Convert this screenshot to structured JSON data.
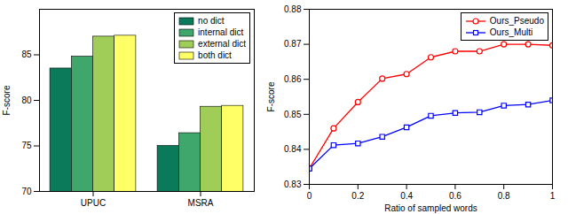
{
  "chart_data": [
    {
      "type": "bar",
      "categories": [
        "UPUC",
        "MSRA"
      ],
      "series": [
        {
          "name": "no dict",
          "color": "#0a7a5a",
          "values": [
            83.5,
            75.0
          ]
        },
        {
          "name": "internal dict",
          "color": "#3fa66c",
          "values": [
            84.8,
            76.4
          ]
        },
        {
          "name": "external dict",
          "color": "#9fcd58",
          "values": [
            87.0,
            79.3
          ]
        },
        {
          "name": "both dict",
          "color": "#ffff66",
          "values": [
            87.1,
            79.4
          ]
        }
      ],
      "ylabel": "F-score",
      "ylim": [
        70,
        90
      ],
      "yticks": [
        70,
        75,
        80,
        85
      ],
      "grid": false,
      "legend": "upper right"
    },
    {
      "type": "line",
      "x": [
        0,
        0.1,
        0.2,
        0.3,
        0.4,
        0.5,
        0.6,
        0.7,
        0.8,
        0.9,
        1
      ],
      "series": [
        {
          "name": "Ours_Pseudo",
          "color": "#ff0000",
          "marker": "o",
          "values": [
            0.8345,
            0.846,
            0.8535,
            0.8602,
            0.8615,
            0.8663,
            0.868,
            0.868,
            0.87,
            0.87,
            0.8697
          ]
        },
        {
          "name": "Ours_Multi",
          "color": "#0000ff",
          "marker": "s",
          "values": [
            0.8345,
            0.8412,
            0.8417,
            0.8436,
            0.8463,
            0.8496,
            0.8504,
            0.8506,
            0.8525,
            0.8528,
            0.854
          ]
        }
      ],
      "xlabel": "Ratio of sampled words",
      "ylabel": "F-score",
      "xlim": [
        0,
        1
      ],
      "xticks": [
        0,
        0.2,
        0.4,
        0.6,
        0.8,
        1
      ],
      "ylim": [
        0.83,
        0.88
      ],
      "yticks": [
        0.83,
        0.84,
        0.85,
        0.86,
        0.87,
        0.88
      ],
      "grid": false,
      "legend": "upper right"
    }
  ]
}
